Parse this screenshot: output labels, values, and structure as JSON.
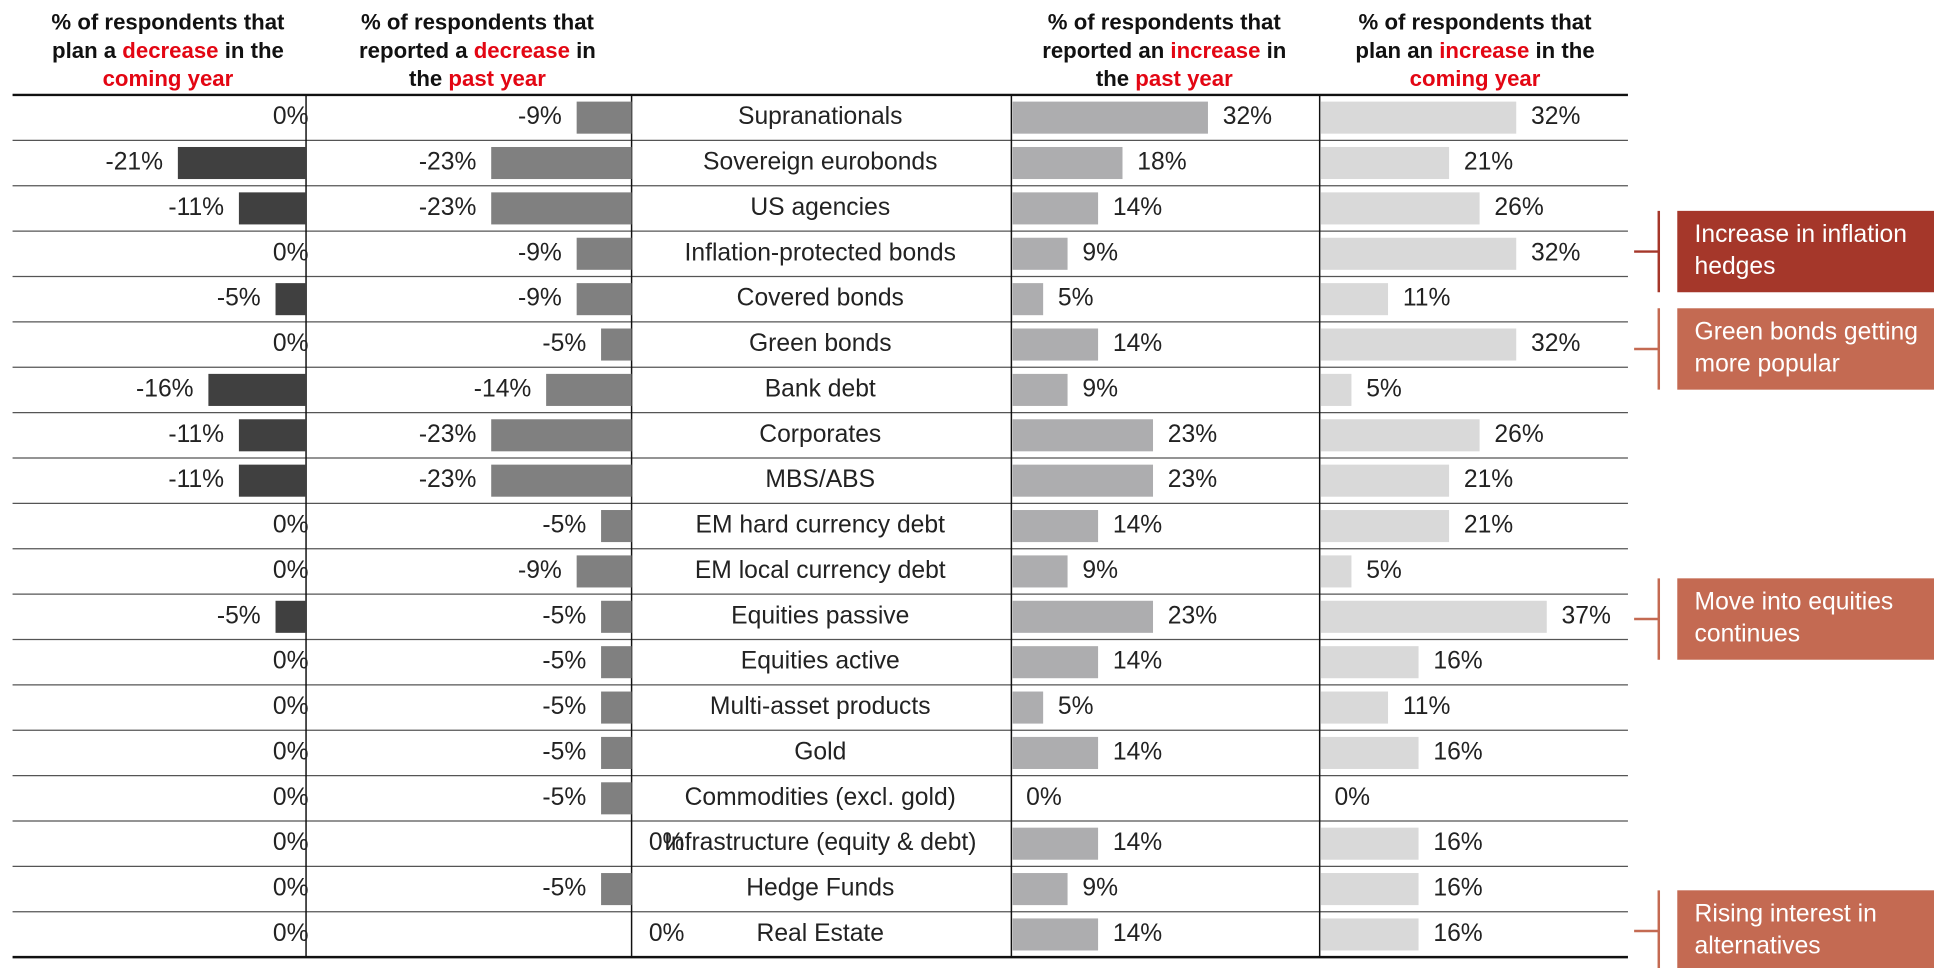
{
  "chart_data": {
    "type": "butterfly-table",
    "categories": [
      "Supranationals",
      "Sovereign eurobonds",
      "US agencies",
      "Inflation-protected bonds",
      "Covered bonds",
      "Green bonds",
      "Bank debt",
      "Corporates",
      "MBS/ABS",
      "EM hard currency debt",
      "EM local currency debt",
      "Equities passive",
      "Equities active",
      "Multi-asset products",
      "Gold",
      "Commodities (excl. gold)",
      "Infrastructure (equity & debt)",
      "Hedge Funds",
      "Real Estate"
    ],
    "series": [
      {
        "header": [
          [
            {
              "text": "% of respondents that"
            }
          ],
          [
            {
              "text": "plan a "
            },
            {
              "text": "decrease",
              "color": "#e30613"
            },
            {
              "text": " in the"
            }
          ],
          [
            {
              "text": "coming year",
              "color": "#e30613"
            }
          ]
        ],
        "color": "#404040",
        "values": [
          0,
          -21,
          -11,
          0,
          -5,
          0,
          -16,
          -11,
          -11,
          0,
          0,
          -5,
          0,
          0,
          0,
          0,
          0,
          0,
          0
        ],
        "value_labels": [
          "0%",
          "-21%",
          "-11%",
          "0%",
          "-5%",
          "0%",
          "-16%",
          "-11%",
          "-11%",
          "0%",
          "0%",
          "-5%",
          "0%",
          "0%",
          "0%",
          "0%",
          "0%",
          "0%",
          "0%"
        ]
      },
      {
        "header": [
          [
            {
              "text": "% of respondents that"
            }
          ],
          [
            {
              "text": "reported a "
            },
            {
              "text": "decrease",
              "color": "#e30613"
            },
            {
              "text": " in"
            }
          ],
          [
            {
              "text": "the "
            },
            {
              "text": "past year",
              "color": "#e30613"
            }
          ]
        ],
        "color": "#808080",
        "values": [
          -9,
          -23,
          -23,
          -9,
          -9,
          -5,
          -14,
          -23,
          -23,
          -5,
          -9,
          -5,
          -5,
          -5,
          -5,
          -5,
          0,
          -5,
          0
        ],
        "value_labels": [
          "-9%",
          "-23%",
          "-23%",
          "-9%",
          "-9%",
          "-5%",
          "-14%",
          "-23%",
          "-23%",
          "-5%",
          "-9%",
          "-5%",
          "-5%",
          "-5%",
          "-5%",
          "-5%",
          "0%",
          "-5%",
          "0%"
        ]
      },
      {
        "header": [
          [
            {
              "text": "% of respondents that"
            }
          ],
          [
            {
              "text": "reported an "
            },
            {
              "text": "increase",
              "color": "#e30613"
            },
            {
              "text": " in"
            }
          ],
          [
            {
              "text": "the "
            },
            {
              "text": "past year",
              "color": "#e30613"
            }
          ]
        ],
        "color": "#adadaf",
        "values": [
          32,
          18,
          14,
          9,
          5,
          14,
          9,
          23,
          23,
          14,
          9,
          23,
          14,
          5,
          14,
          0,
          14,
          9,
          14
        ],
        "value_labels": [
          "32%",
          "18%",
          "14%",
          "9%",
          "5%",
          "14%",
          "9%",
          "23%",
          "23%",
          "14%",
          "9%",
          "23%",
          "14%",
          "5%",
          "14%",
          "0%",
          "14%",
          "9%",
          "14%"
        ]
      },
      {
        "header": [
          [
            {
              "text": "% of respondents that"
            }
          ],
          [
            {
              "text": "plan an "
            },
            {
              "text": "increase",
              "color": "#e30613"
            },
            {
              "text": " in the"
            }
          ],
          [
            {
              "text": "coming year",
              "color": "#e30613"
            }
          ]
        ],
        "color": "#d9d9d9",
        "values": [
          32,
          21,
          26,
          32,
          11,
          32,
          5,
          26,
          21,
          21,
          5,
          37,
          16,
          11,
          16,
          0,
          16,
          16,
          16
        ],
        "value_labels": [
          "32%",
          "21%",
          "26%",
          "32%",
          "11%",
          "32%",
          "5%",
          "26%",
          "21%",
          "21%",
          "5%",
          "37%",
          "16%",
          "11%",
          "16%",
          "0%",
          "16%",
          "16%",
          "16%"
        ]
      }
    ],
    "annotations": [
      {
        "lines": [
          "Increase in inflation",
          "hedges"
        ],
        "color": "#a5372a"
      },
      {
        "lines": [
          "Green bonds getting",
          "more popular"
        ],
        "color": "#c46a52"
      },
      {
        "lines": [
          "Move into equities",
          "continues"
        ],
        "color": "#c46a52"
      },
      {
        "lines": [
          "Rising interest in",
          "alternatives"
        ],
        "color": "#c46a52"
      }
    ]
  }
}
